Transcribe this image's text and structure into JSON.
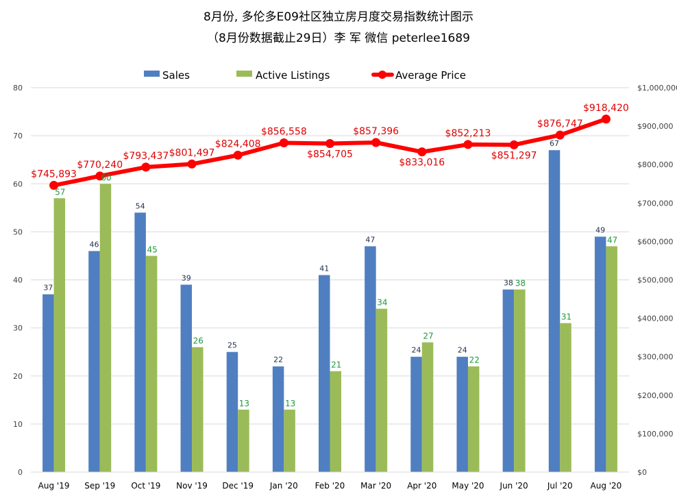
{
  "chart_data": {
    "type": "bar",
    "title": "8月份, 多伦多E09社区独立房月度交易指数统计图示",
    "subtitle": "（8月份数据截止29日）李 军  微信  peterlee1689",
    "categories": [
      "Aug '19",
      "Sep '19",
      "Oct '19",
      "Nov '19",
      "Dec '19",
      "Jan '20",
      "Feb '20",
      "Mar '20",
      "Apr '20",
      "May '20",
      "Jun '20",
      "Jul '20",
      "Aug '20"
    ],
    "series": [
      {
        "name": "Sales",
        "type": "bar",
        "axis": "left",
        "color": "#4f7fc0",
        "label_color": "#1f2d4a",
        "values": [
          37,
          46,
          54,
          39,
          25,
          22,
          41,
          47,
          24,
          24,
          38,
          67,
          49
        ]
      },
      {
        "name": "Active Listings",
        "type": "bar",
        "axis": "left",
        "color": "#9bbb59",
        "label_color": "#1e9a3c",
        "values": [
          57,
          60,
          45,
          26,
          13,
          13,
          21,
          34,
          27,
          22,
          38,
          31,
          47
        ]
      },
      {
        "name": "Average Price",
        "type": "line",
        "axis": "right",
        "color": "#ff0000",
        "label_color": "#e00000",
        "values": [
          745893,
          770240,
          793437,
          801497,
          824408,
          856558,
          854705,
          857396,
          833016,
          852213,
          851297,
          876747,
          918420
        ],
        "labels": [
          "$745,893",
          "$770,240",
          "$793,437",
          "$801,497",
          "$824,408",
          "$856,558",
          "$854,705",
          "$857,396",
          "$833,016",
          "$852,213",
          "$851,297",
          "$876,747",
          "$918,420"
        ]
      }
    ],
    "y_left": {
      "min": 0,
      "max": 80,
      "ticks": [
        0,
        10,
        20,
        30,
        40,
        50,
        60,
        70,
        80
      ]
    },
    "y_right": {
      "min": 0,
      "max": 1000000,
      "ticks": [
        0,
        100000,
        200000,
        300000,
        400000,
        500000,
        600000,
        700000,
        800000,
        900000,
        1000000
      ],
      "tick_labels": [
        "$0",
        "$100,000",
        "$200,000",
        "$300,000",
        "$400,000",
        "$500,000",
        "$600,000",
        "$700,000",
        "$800,000",
        "$900,000",
        "$1,000,000"
      ]
    },
    "grid": true,
    "legend": {
      "position": "top",
      "items": [
        "Sales",
        "Active Listings",
        "Average Price"
      ]
    }
  }
}
